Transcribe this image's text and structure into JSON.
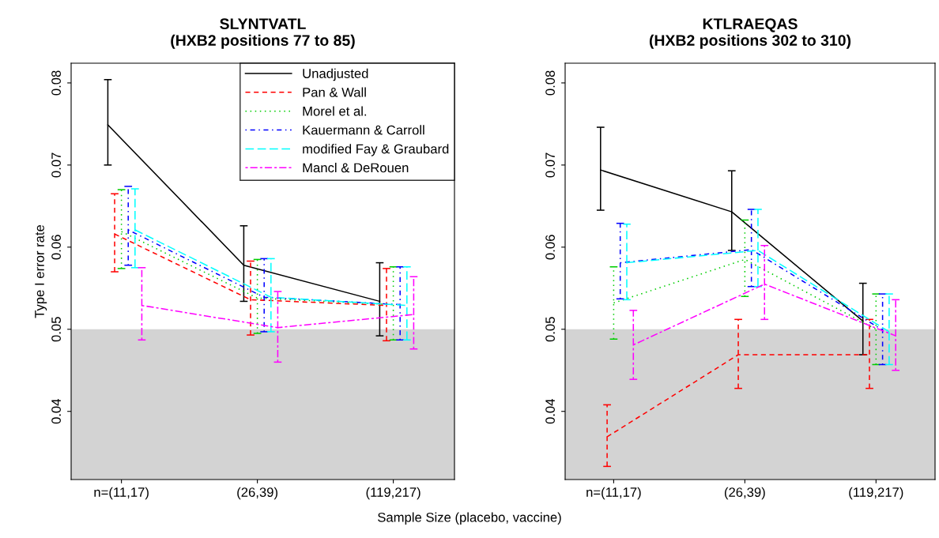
{
  "chart_data": [
    {
      "type": "line",
      "title": "SLYNTVATL\n(HXB2 positions 77 to 85)",
      "xlabel": "Sample Size (placebo, vaccine)",
      "ylabel": "Type I error rate",
      "categories": [
        "n=(11,17)",
        "(26,39)",
        "(119,217)"
      ],
      "ylim": [
        0.0317,
        0.0824
      ],
      "yticks": [
        0.04,
        0.05,
        0.06,
        0.07,
        0.08
      ],
      "grid": false,
      "legend": "top right",
      "bands": [
        {
          "axis": "y",
          "from": 0.0317,
          "to": 0.05,
          "color": "#d3d3d3"
        }
      ],
      "series": [
        {
          "name": "Unadjusted",
          "color": "#000000",
          "line_style": "solid",
          "values": [
            0.0749,
            0.0578,
            0.0534
          ],
          "errors": [
            [
              0.07,
              0.0804
            ],
            [
              0.0534,
              0.0626
            ],
            [
              0.0492,
              0.0581
            ]
          ]
        },
        {
          "name": "Pan & Wall",
          "color": "#ff0000",
          "line_style": "dashed",
          "values": [
            0.0616,
            0.0536,
            0.0529
          ],
          "errors": [
            [
              0.057,
              0.0665
            ],
            [
              0.0493,
              0.0583
            ],
            [
              0.0486,
              0.0574
            ]
          ]
        },
        {
          "name": "Morel et al.",
          "color": "#00cd00",
          "line_style": "dotted",
          "values": [
            0.0619,
            0.0538,
            0.053
          ],
          "errors": [
            [
              0.0574,
              0.067
            ],
            [
              0.0495,
              0.0585
            ],
            [
              0.0487,
              0.0576
            ]
          ]
        },
        {
          "name": "Kauermann & Carroll",
          "color": "#0000ff",
          "line_style": "dashdot",
          "values": [
            0.0621,
            0.0539,
            0.053
          ],
          "errors": [
            [
              0.0578,
              0.0674
            ],
            [
              0.0497,
              0.0586
            ],
            [
              0.0487,
              0.0576
            ]
          ]
        },
        {
          "name": "modified Fay & Graubard",
          "color": "#00ffff",
          "line_style": "longdash",
          "values": [
            0.0621,
            0.0539,
            0.0529
          ],
          "errors": [
            [
              0.0575,
              0.0671
            ],
            [
              0.0497,
              0.0586
            ],
            [
              0.0487,
              0.0576
            ]
          ]
        },
        {
          "name": "Mancl & DeRouen",
          "color": "#ff00ff",
          "line_style": "twodash",
          "values": [
            0.0529,
            0.0502,
            0.0518
          ],
          "errors": [
            [
              0.0487,
              0.0575
            ],
            [
              0.046,
              0.0546
            ],
            [
              0.0476,
              0.0564
            ]
          ]
        }
      ]
    },
    {
      "type": "line",
      "title": "KTLRAEQAS\n(HXB2 positions 302 to 310)",
      "categories": [
        "n=(11,17)",
        "(26,39)",
        "(119,217)"
      ],
      "ylim": [
        0.0317,
        0.0824
      ],
      "yticks": [
        0.04,
        0.05,
        0.06,
        0.07,
        0.08
      ],
      "grid": false,
      "bands": [
        {
          "axis": "y",
          "from": 0.0317,
          "to": 0.05,
          "color": "#d3d3d3"
        }
      ],
      "series": [
        {
          "color": "#000000",
          "line_style": "solid",
          "values": [
            0.0694,
            0.0643,
            0.051
          ],
          "errors": [
            [
              0.0645,
              0.0746
            ],
            [
              0.0596,
              0.0693
            ],
            [
              0.0469,
              0.0556
            ]
          ]
        },
        {
          "color": "#ff0000",
          "line_style": "dashed",
          "values": [
            0.0369,
            0.0469,
            0.0469
          ],
          "errors": [
            [
              0.0333,
              0.0408
            ],
            [
              0.0428,
              0.0512
            ],
            [
              0.0428,
              0.0512
            ]
          ]
        },
        {
          "color": "#00cd00",
          "line_style": "dotted",
          "values": [
            0.0532,
            0.0585,
            0.05
          ],
          "errors": [
            [
              0.0488,
              0.0576
            ],
            [
              0.054,
              0.0633
            ],
            [
              0.0457,
              0.0543
            ]
          ]
        },
        {
          "color": "#0000ff",
          "line_style": "dashdot",
          "values": [
            0.0581,
            0.0597,
            0.0499
          ],
          "errors": [
            [
              0.0537,
              0.0629
            ],
            [
              0.0552,
              0.0646
            ],
            [
              0.0457,
              0.0543
            ]
          ]
        },
        {
          "color": "#00ffff",
          "line_style": "longdash",
          "values": [
            0.0581,
            0.0596,
            0.0497
          ],
          "errors": [
            [
              0.0536,
              0.0628
            ],
            [
              0.0552,
              0.0646
            ],
            [
              0.0457,
              0.0543
            ]
          ]
        },
        {
          "color": "#ff00ff",
          "line_style": "twodash",
          "values": [
            0.0481,
            0.0555,
            0.0492
          ],
          "errors": [
            [
              0.0439,
              0.0523
            ],
            [
              0.0512,
              0.0602
            ],
            [
              0.045,
              0.0536
            ]
          ]
        }
      ]
    }
  ]
}
